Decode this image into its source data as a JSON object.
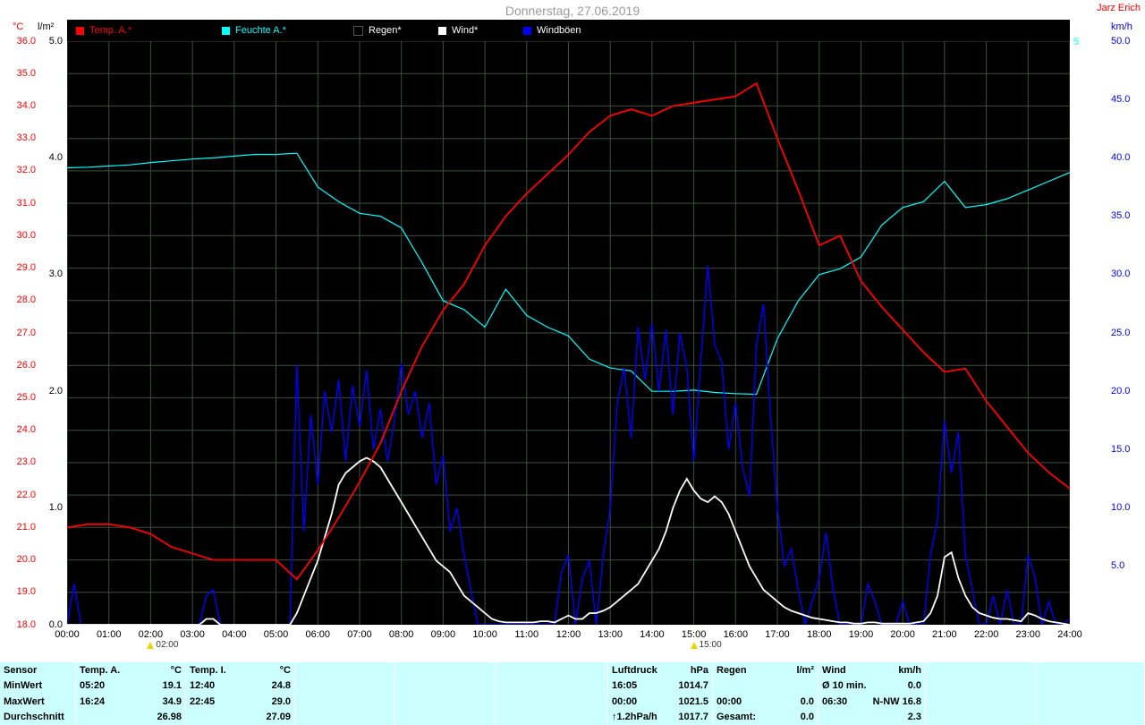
{
  "header": {
    "title": "Donnerstag, 27.06.2019",
    "author": "Jarz Erich"
  },
  "legend": {
    "items": [
      {
        "label": "Temp. A.*",
        "swatch": "#ff0000",
        "label_color": "#ff0000"
      },
      {
        "label": "Feuchte A.*",
        "swatch": "#00ffff",
        "label_color": "#00ffff"
      },
      {
        "label": "Regen*",
        "swatch": "#000000",
        "label_color": "#ffffff"
      },
      {
        "label": "Wind*",
        "swatch": "#ffffff",
        "label_color": "#ffffff"
      },
      {
        "label": "Windböen",
        "swatch": "#0000ff",
        "label_color": "#ffffff"
      }
    ]
  },
  "chart_data": {
    "type": "line",
    "title": "Donnerstag, 27.06.2019",
    "background": "#000000",
    "grid": true,
    "legend_position": "top",
    "axes": {
      "temp_c": {
        "min": 18,
        "max": 36,
        "step": 1,
        "color": "#ff0000",
        "caption": "°C",
        "side": "left-outer"
      },
      "rain_lm2": {
        "min": 0,
        "max": 5,
        "step": 1,
        "color": "#000000",
        "caption": "l/m²",
        "side": "left-inner"
      },
      "humidity": {
        "min": 0,
        "max": 100,
        "color": "#00ffff",
        "top_label": "5",
        "side": "right-inner"
      },
      "wind_kmh": {
        "min": 0,
        "max": 50,
        "step": 5,
        "color": "#0000ff",
        "caption": "km/h",
        "side": "right-outer"
      }
    },
    "x_labels": [
      "00:00",
      "01:00",
      "02:00",
      "03:00",
      "04:00",
      "05:00",
      "06:00",
      "07:00",
      "08:00",
      "09:00",
      "10:00",
      "11:00",
      "12:00",
      "13:00",
      "14:00",
      "15:00",
      "16:00",
      "17:00",
      "18:00",
      "19:00",
      "20:00",
      "21:00",
      "22:00",
      "23:00",
      "24:00"
    ],
    "time_markers": [
      {
        "label": "02:00"
      },
      {
        "label": "15:00"
      }
    ],
    "series": [
      {
        "name": "Temp. A.*",
        "color": "#ff0000",
        "axis": "temp_c",
        "step_min": 30,
        "values": [
          21.0,
          21.1,
          21.1,
          21.0,
          20.8,
          20.4,
          20.2,
          20.0,
          20.0,
          20.0,
          20.0,
          19.4,
          20.3,
          21.3,
          22.4,
          23.6,
          25.2,
          26.6,
          27.7,
          28.5,
          29.7,
          30.6,
          31.3,
          31.9,
          32.5,
          33.2,
          33.7,
          33.9,
          33.7,
          34.0,
          34.1,
          34.2,
          34.3,
          34.7,
          33.0,
          31.4,
          29.7,
          30.0,
          28.6,
          27.8,
          27.1,
          26.4,
          25.8,
          25.9,
          24.9,
          24.1,
          23.3,
          22.7,
          22.2
        ]
      },
      {
        "name": "Feuchte A.*",
        "color": "#00ffff",
        "axis": "humidity",
        "step_min": 30,
        "values": [
          78.3,
          78.4,
          78.6,
          78.8,
          79.2,
          79.5,
          79.8,
          80.0,
          80.3,
          80.6,
          80.6,
          80.8,
          75.0,
          72.5,
          70.5,
          70.0,
          68.0,
          62.0,
          55.5,
          54.0,
          51.0,
          57.5,
          53.0,
          51.0,
          49.5,
          45.5,
          44.0,
          43.5,
          40.0,
          40.0,
          40.2,
          39.8,
          39.6,
          39.5,
          49.0,
          55.5,
          60.0,
          61.0,
          63.0,
          68.5,
          71.5,
          72.5,
          76.0,
          71.5,
          72.0,
          73.0,
          74.5,
          76.0,
          77.5
        ]
      },
      {
        "name": "Regen*",
        "color": "#000000",
        "axis": "rain_lm2",
        "step_min": 60,
        "values": [
          0,
          0,
          0,
          0,
          0,
          0,
          0,
          0,
          0,
          0,
          0,
          0,
          0,
          0,
          0,
          0,
          0,
          0,
          0,
          0,
          0,
          0,
          0,
          0,
          0
        ]
      },
      {
        "name": "Wind*",
        "color": "#ffffff",
        "axis": "wind_kmh",
        "step_min": 10,
        "values": [
          0,
          0,
          0,
          0,
          0,
          0,
          0,
          0,
          0,
          0,
          0,
          0,
          0,
          0,
          0,
          0,
          0,
          0,
          0,
          0,
          0.5,
          0.5,
          0,
          0,
          0,
          0,
          0,
          0,
          0,
          0,
          0,
          0,
          0,
          1,
          2.5,
          4,
          5.5,
          7.5,
          9.5,
          12,
          13,
          13.5,
          14,
          14.3,
          14,
          13.5,
          12.5,
          11.5,
          10.5,
          9.5,
          8.5,
          7.5,
          6.5,
          5.5,
          5,
          4.5,
          3.5,
          2.5,
          2,
          1.5,
          1,
          0.5,
          0.3,
          0.2,
          0.2,
          0.2,
          0.2,
          0.2,
          0.3,
          0.3,
          0.2,
          0.5,
          0.8,
          0.5,
          0.5,
          1,
          1,
          1.2,
          1.5,
          2,
          2.5,
          3,
          3.5,
          4.5,
          5.5,
          6.5,
          8,
          10,
          11.5,
          12.5,
          11.5,
          10.8,
          10.5,
          11,
          10.5,
          9.5,
          8,
          6.5,
          5,
          4,
          3,
          2.5,
          2,
          1.5,
          1.2,
          1,
          0.8,
          0.6,
          0.5,
          0.4,
          0.3,
          0.2,
          0.2,
          0.1,
          0.1,
          0.2,
          0.2,
          0.1,
          0.1,
          0.1,
          0.1,
          0.1,
          0.2,
          0.3,
          1,
          2.5,
          5.8,
          6.2,
          4,
          2.5,
          1.5,
          1,
          0.8,
          0.6,
          0.5,
          0.5,
          0.4,
          0.3,
          1,
          0.8,
          0.5,
          0.3,
          0.2,
          0.1,
          0
        ]
      },
      {
        "name": "Windböen",
        "color": "#0000ff",
        "axis": "wind_kmh",
        "step_min": 10,
        "values": [
          0,
          3.5,
          0,
          0,
          0,
          0,
          0,
          0,
          0,
          0,
          0,
          0,
          0,
          0,
          0,
          0,
          0,
          0,
          0,
          0,
          2.5,
          3,
          0,
          0,
          0,
          0,
          0,
          0,
          0,
          0,
          0,
          0,
          0,
          22.3,
          8,
          18,
          12,
          20,
          16.5,
          21,
          14,
          20.5,
          17,
          21.8,
          15,
          18.5,
          14,
          17.5,
          22.4,
          18,
          20,
          16,
          19,
          12,
          14.5,
          8,
          10,
          6,
          3,
          0,
          0,
          0,
          0,
          0,
          0,
          0,
          0,
          0,
          0,
          0,
          0,
          4.5,
          6,
          0,
          4,
          5.5,
          0,
          6,
          10,
          19,
          22,
          16,
          25.5,
          21,
          25.8,
          20,
          25.3,
          18,
          25,
          22,
          14,
          22.5,
          30.8,
          24,
          22.5,
          15,
          19,
          13.5,
          11,
          24,
          27.5,
          18,
          10,
          5,
          6.5,
          3,
          0,
          2,
          4,
          7.9,
          3,
          0,
          0,
          0,
          0,
          3.5,
          2,
          0,
          0,
          0,
          2,
          0,
          0,
          0,
          6,
          9,
          17.5,
          13,
          16.5,
          6,
          3,
          0,
          0,
          2.5,
          0,
          3,
          0,
          0,
          6,
          4,
          0,
          2,
          0,
          0,
          0.5
        ]
      }
    ]
  },
  "table": {
    "row_labels": [
      "Sensor",
      "MinWert",
      "MaxWert",
      "Durchschnitt"
    ],
    "columns": [
      {
        "id": "temp_a",
        "header": [
          "Temp. A.",
          "°C"
        ],
        "cells": [
          [
            "05:20",
            "19.1"
          ],
          [
            "16:24",
            "34.9"
          ],
          [
            "",
            "26.98"
          ]
        ]
      },
      {
        "id": "temp_i",
        "header": [
          "Temp. I.",
          "°C"
        ],
        "cells": [
          [
            "12:40",
            "24.8"
          ],
          [
            "22:45",
            "29.0"
          ],
          [
            "",
            "27.09"
          ]
        ]
      },
      {
        "id": "spacer1",
        "header": [
          "",
          ""
        ],
        "cells": [
          [
            "",
            ""
          ],
          [
            "",
            ""
          ],
          [
            "",
            ""
          ]
        ]
      },
      {
        "id": "spacer2",
        "header": [
          "",
          ""
        ],
        "cells": [
          [
            "",
            ""
          ],
          [
            "",
            ""
          ],
          [
            "",
            ""
          ]
        ]
      },
      {
        "id": "spacer3",
        "header": [
          "",
          ""
        ],
        "cells": [
          [
            "",
            ""
          ],
          [
            "",
            ""
          ],
          [
            "",
            ""
          ]
        ]
      },
      {
        "id": "luftdruck",
        "header": [
          "Luftdruck",
          "hPa"
        ],
        "cells": [
          [
            "16:05",
            "1014.7"
          ],
          [
            "00:00",
            "1021.5"
          ],
          [
            "↑1.2hPa/h",
            "1017.7"
          ]
        ]
      },
      {
        "id": "regen",
        "header": [
          "Regen",
          "l/m²"
        ],
        "cells": [
          [
            "",
            ""
          ],
          [
            "00:00",
            "0.0"
          ],
          [
            "Gesamt:",
            "0.0"
          ]
        ]
      },
      {
        "id": "wind",
        "header": [
          "Wind",
          "km/h"
        ],
        "cells": [
          [
            "Ø 10 min.",
            "0.0"
          ],
          [
            "06:30",
            "N-NW 16.8"
          ],
          [
            "",
            "2.3"
          ]
        ]
      },
      {
        "id": "spacer4",
        "header": [
          "",
          ""
        ],
        "cells": [
          [
            "",
            ""
          ],
          [
            "",
            ""
          ],
          [
            "",
            ""
          ]
        ]
      },
      {
        "id": "spacer5",
        "header": [
          "",
          ""
        ],
        "cells": [
          [
            "",
            ""
          ],
          [
            "",
            ""
          ],
          [
            "",
            ""
          ]
        ]
      }
    ]
  }
}
